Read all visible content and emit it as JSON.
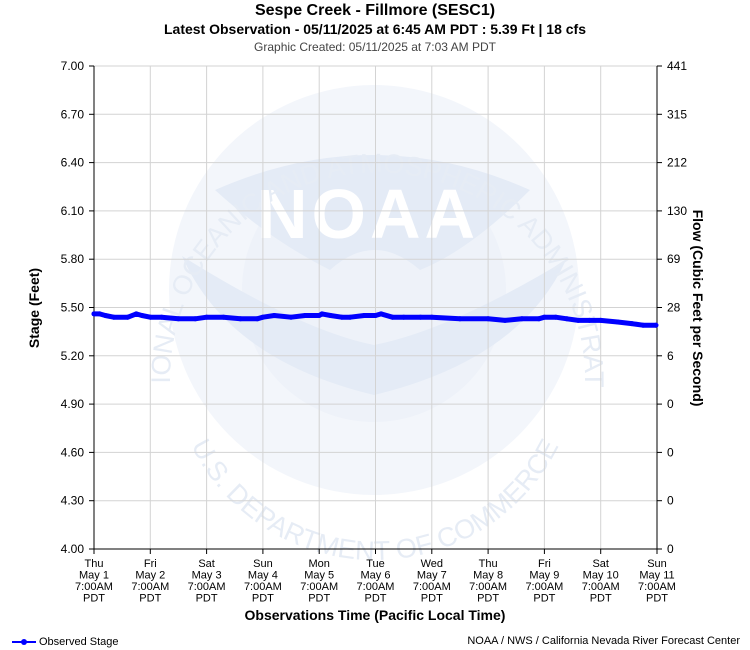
{
  "header": {
    "title": "Sespe Creek - Fillmore (SESC1)",
    "subtitle": "Latest Observation - 05/11/2025 at 6:45 AM PDT : 5.39 Ft | 18 cfs",
    "created": "Graphic Created: 05/11/2025 at 7:03 AM PDT"
  },
  "watermark": {
    "logo_text": "NOAA",
    "top_arc": "NATIONAL OCEANIC AND ATMOSPHERIC ADMINISTRATION",
    "bottom_arc": "U.S. DEPARTMENT OF COMMERCE"
  },
  "footer": {
    "legend_label": "Observed Stage",
    "credit": "NOAA / NWS / California Nevada River Forecast Center"
  },
  "colors": {
    "series": "#0000ff",
    "grid": "#d3d3d3",
    "watermark_light": "#eef2f9",
    "watermark_mid": "#dfe7f4"
  },
  "chart_data": {
    "type": "line",
    "title": "Sespe Creek - Fillmore (SESC1)",
    "xlabel": "Observations Time (Pacific Local Time)",
    "ylabel_left": "Stage (Feet)",
    "ylabel_right": "Flow (Cubic Feet per Second)",
    "ylim": [
      4.0,
      7.0
    ],
    "x_ticks": [
      [
        "Thu",
        "May 1",
        "7:00AM",
        "PDT"
      ],
      [
        "Fri",
        "May 2",
        "7:00AM",
        "PDT"
      ],
      [
        "Sat",
        "May 3",
        "7:00AM",
        "PDT"
      ],
      [
        "Sun",
        "May 4",
        "7:00AM",
        "PDT"
      ],
      [
        "Mon",
        "May 5",
        "7:00AM",
        "PDT"
      ],
      [
        "Tue",
        "May 6",
        "7:00AM",
        "PDT"
      ],
      [
        "Wed",
        "May 7",
        "7:00AM",
        "PDT"
      ],
      [
        "Thu",
        "May 8",
        "7:00AM",
        "PDT"
      ],
      [
        "Fri",
        "May 9",
        "7:00AM",
        "PDT"
      ],
      [
        "Sat",
        "May 10",
        "7:00AM",
        "PDT"
      ],
      [
        "Sun",
        "May 11",
        "7:00AM",
        "PDT"
      ]
    ],
    "y_ticks_left": [
      "4.00",
      "4.30",
      "4.60",
      "4.90",
      "5.20",
      "5.50",
      "5.80",
      "6.10",
      "6.40",
      "6.70",
      "7.00"
    ],
    "y_ticks_right": [
      "0",
      "0",
      "0",
      "0",
      "6",
      "28",
      "69",
      "130",
      "212",
      "315",
      "441"
    ],
    "grid": true,
    "legend_position": "bottom-left",
    "series": [
      {
        "name": "Observed Stage",
        "x_unit": "days since May 1 7:00AM PDT",
        "x": [
          0,
          0.1,
          0.2,
          0.35,
          0.6,
          0.75,
          0.85,
          1.0,
          1.2,
          1.5,
          1.8,
          2.0,
          2.3,
          2.6,
          2.9,
          3.0,
          3.2,
          3.5,
          3.75,
          4.0,
          4.05,
          4.2,
          4.4,
          4.55,
          4.8,
          5.0,
          5.1,
          5.3,
          5.5,
          5.8,
          6.0,
          6.5,
          7.0,
          7.3,
          7.6,
          7.9,
          8.0,
          8.2,
          8.4,
          8.6,
          8.8,
          9.0,
          9.3,
          9.55,
          9.75,
          9.98
        ],
        "y": [
          5.46,
          5.46,
          5.45,
          5.44,
          5.44,
          5.46,
          5.45,
          5.44,
          5.44,
          5.43,
          5.43,
          5.44,
          5.44,
          5.43,
          5.43,
          5.44,
          5.45,
          5.44,
          5.45,
          5.45,
          5.46,
          5.45,
          5.44,
          5.44,
          5.45,
          5.45,
          5.46,
          5.44,
          5.44,
          5.44,
          5.44,
          5.43,
          5.43,
          5.42,
          5.43,
          5.43,
          5.44,
          5.44,
          5.43,
          5.42,
          5.42,
          5.42,
          5.41,
          5.4,
          5.39,
          5.39
        ]
      }
    ]
  }
}
